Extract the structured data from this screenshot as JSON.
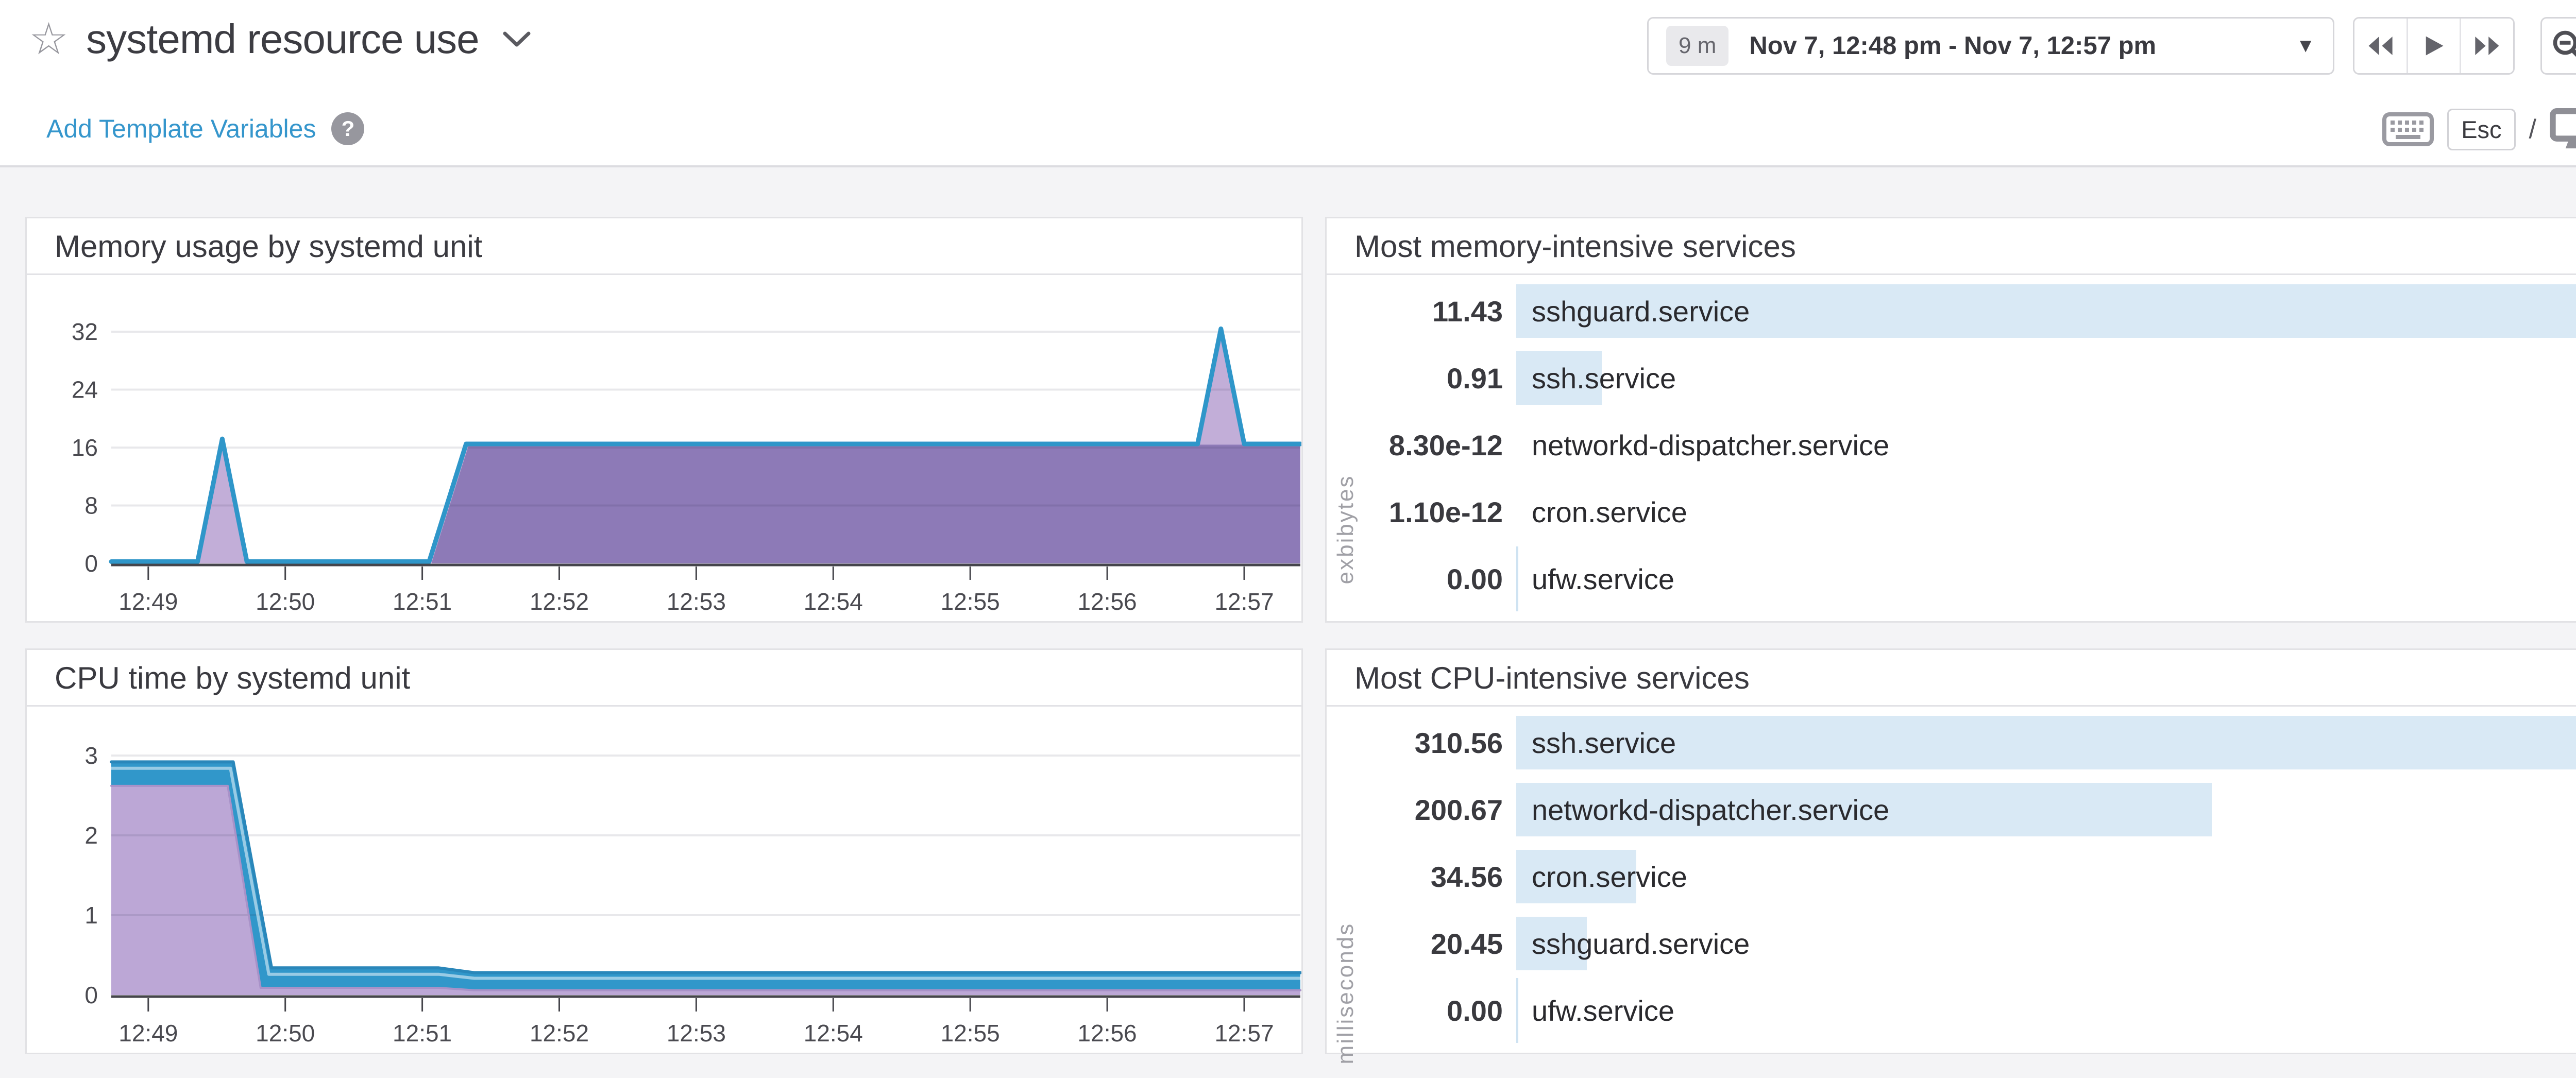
{
  "header": {
    "title": "systemd resource use",
    "star_glyph": "☆",
    "add_template_variables": "Add Template Variables",
    "help_glyph": "?",
    "time_range_label": "9 m",
    "time_range_text": "Nov 7, 12:48 pm - Nov 7, 12:57 pm",
    "caret_glyph": "▼",
    "esc_label": "Esc",
    "slash": "/"
  },
  "colors": {
    "link_blue": "#3596cc",
    "timeseries_line_blue": "#2f96c9",
    "area_light_purple": "#c2aed8",
    "area_dark_purple": "#8d7ab7",
    "cpu_area_blue": "#3197ca",
    "cpu_area_purple": "#bca7d6",
    "toplist_bar_blue": "#d9e9f5",
    "page_background": "#f4f4f6"
  },
  "chart_data": [
    {
      "id": "memory-timeseries",
      "type": "area",
      "title": "Memory usage by systemd unit",
      "xlabel": "",
      "ylabel": "",
      "ylim": [
        0,
        36
      ],
      "y_grid": [
        0,
        8,
        16,
        24,
        32
      ],
      "x_domain_minutes": [
        48.73,
        57.41
      ],
      "x_ticks": [
        {
          "t": 49,
          "label": "12:49"
        },
        {
          "t": 50,
          "label": "12:50"
        },
        {
          "t": 51,
          "label": "12:51"
        },
        {
          "t": 52,
          "label": "12:52"
        },
        {
          "t": 53,
          "label": "12:53"
        },
        {
          "t": 54,
          "label": "12:54"
        },
        {
          "t": 55,
          "label": "12:55"
        },
        {
          "t": 56,
          "label": "12:56"
        },
        {
          "t": 57,
          "label": "12:57"
        }
      ],
      "series": [
        {
          "name": "stacked-total",
          "fill": "#c2aed8",
          "stroke": "#2f96c9",
          "sw": 9,
          "points": [
            [
              48.73,
              0.25
            ],
            [
              49.36,
              0.25
            ],
            [
              49.54,
              17.2
            ],
            [
              49.72,
              0.25
            ],
            [
              51.05,
              0.25
            ],
            [
              51.32,
              16.5
            ],
            [
              56.66,
              16.5
            ],
            [
              56.83,
              32.4
            ],
            [
              57.0,
              16.5
            ],
            [
              57.41,
              16.5
            ]
          ]
        },
        {
          "name": "overlap-region",
          "fill": "#8d7ab7",
          "stroke": null,
          "points": [
            [
              51.07,
              0.2
            ],
            [
              51.34,
              16.4
            ],
            [
              57.41,
              16.4
            ]
          ]
        }
      ]
    },
    {
      "id": "memory-toplist",
      "type": "bar",
      "title": "Most memory-intensive services",
      "unit": "exbibytes",
      "items": [
        {
          "label": "sshguard.service",
          "value": "11.43"
        },
        {
          "label": "ssh.service",
          "value": "0.91"
        },
        {
          "label": "networkd-dispatcher.service",
          "value": "8.30e-12"
        },
        {
          "label": "cron.service",
          "value": "1.10e-12"
        },
        {
          "label": "ufw.service",
          "value": "0.00"
        }
      ]
    },
    {
      "id": "cpu-timeseries",
      "type": "area",
      "title": "CPU time by systemd unit",
      "xlabel": "",
      "ylabel": "",
      "ylim": [
        0,
        3.2
      ],
      "y_grid": [
        0,
        1,
        2,
        3
      ],
      "x_domain_minutes": [
        48.73,
        57.41
      ],
      "x_ticks": [
        {
          "t": 49,
          "label": "12:49"
        },
        {
          "t": 50,
          "label": "12:50"
        },
        {
          "t": 51,
          "label": "12:51"
        },
        {
          "t": 52,
          "label": "12:52"
        },
        {
          "t": 53,
          "label": "12:53"
        },
        {
          "t": 54,
          "label": "12:54"
        },
        {
          "t": 55,
          "label": "12:55"
        },
        {
          "t": 56,
          "label": "12:56"
        },
        {
          "t": 57,
          "label": "12:57"
        }
      ],
      "series": [
        {
          "name": "stacked-total-blue",
          "fill": "#3197ca",
          "stroke": "#2a87ba",
          "sw": 6,
          "points": [
            [
              48.73,
              2.92
            ],
            [
              49.62,
              2.92
            ],
            [
              49.9,
              0.34
            ],
            [
              51.12,
              0.34
            ],
            [
              51.38,
              0.28
            ],
            [
              57.41,
              0.28
            ]
          ]
        },
        {
          "name": "inner-highlight-line",
          "fill": null,
          "stroke": "rgba(255,255,255,0.5)",
          "sw": 6,
          "points": [
            [
              48.73,
              2.84
            ],
            [
              49.6,
              2.84
            ],
            [
              49.88,
              0.26
            ],
            [
              51.12,
              0.26
            ],
            [
              51.38,
              0.21
            ],
            [
              57.41,
              0.21
            ]
          ]
        },
        {
          "name": "purple-series",
          "fill": "#bca7d6",
          "stroke": "#a892c8",
          "sw": 4,
          "points": [
            [
              48.73,
              2.62
            ],
            [
              49.58,
              2.62
            ],
            [
              49.82,
              0.09
            ],
            [
              51.12,
              0.09
            ],
            [
              51.38,
              0.06
            ],
            [
              57.41,
              0.06
            ]
          ]
        }
      ]
    },
    {
      "id": "cpu-toplist",
      "type": "bar",
      "title": "Most CPU-intensive services",
      "unit": "milliseconds",
      "items": [
        {
          "label": "ssh.service",
          "value": "310.56"
        },
        {
          "label": "networkd-dispatcher.service",
          "value": "200.67"
        },
        {
          "label": "cron.service",
          "value": "34.56"
        },
        {
          "label": "sshguard.service",
          "value": "20.45"
        },
        {
          "label": "ufw.service",
          "value": "0.00"
        }
      ]
    }
  ]
}
